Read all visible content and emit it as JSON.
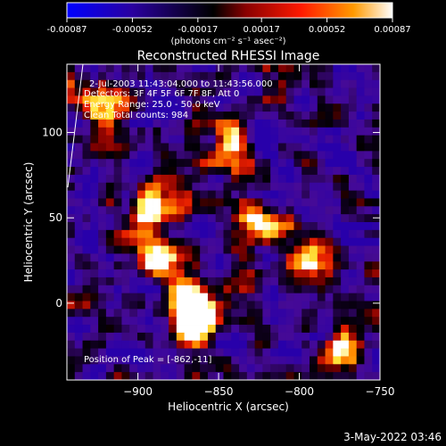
{
  "colorbar": {
    "tick_labels": [
      "-0.00087",
      "-0.00052",
      "-0.00017",
      "0.00017",
      "0.00052",
      "0.00087"
    ],
    "tick_values": [
      -0.00087,
      -0.00052,
      -0.00017,
      0.00017,
      0.00052,
      0.00087
    ],
    "range": [
      -0.00087,
      0.00087
    ],
    "unit_label": "(photons cm⁻² s⁻¹ asec⁻²)",
    "colors": [
      "#0000ff",
      "#2a00a0",
      "#000000",
      "#8a0000",
      "#ff1a00",
      "#ff9a00",
      "#ffffff"
    ]
  },
  "chart_data": {
    "type": "heatmap",
    "title": "Reconstructed RHESSI Image",
    "xlabel": "Heliocentric X (arcsec)",
    "ylabel": "Heliocentric Y (arcsec)",
    "xlim": [
      -944,
      -750
    ],
    "ylim": [
      -45,
      140
    ],
    "xticks": [
      -900,
      -850,
      -800,
      -750
    ],
    "yticks": [
      0,
      50,
      100
    ],
    "colormap": "RHESSI blue-black-red-yellow-white",
    "bright_regions": [
      {
        "x": -868,
        "y": 3,
        "level": "high"
      },
      {
        "x": -885,
        "y": 27,
        "level": "high"
      },
      {
        "x": -891,
        "y": 55,
        "level": "high"
      },
      {
        "x": -862,
        "y": -11,
        "level": "peak"
      },
      {
        "x": -828,
        "y": 48,
        "level": "high"
      },
      {
        "x": -794,
        "y": 28,
        "level": "medium"
      },
      {
        "x": -843,
        "y": 91,
        "level": "medium"
      },
      {
        "x": -922,
        "y": 118,
        "level": "medium"
      },
      {
        "x": -775,
        "y": -30,
        "level": "medium"
      }
    ],
    "annotations": {
      "time": "2-Jul-2003 11:43:04.000 to 11:43:56.000",
      "detectors": "Detectors: 3F 4F 5F 6F 7F 8F, Att 0",
      "energy": "Energy Range: 25.0 - 50.0 keV",
      "clean": "Clean     Total counts: 984",
      "peak": "Position of Peak = [-862,-11]"
    }
  },
  "footer": {
    "date": "3-May-2022 03:46"
  }
}
